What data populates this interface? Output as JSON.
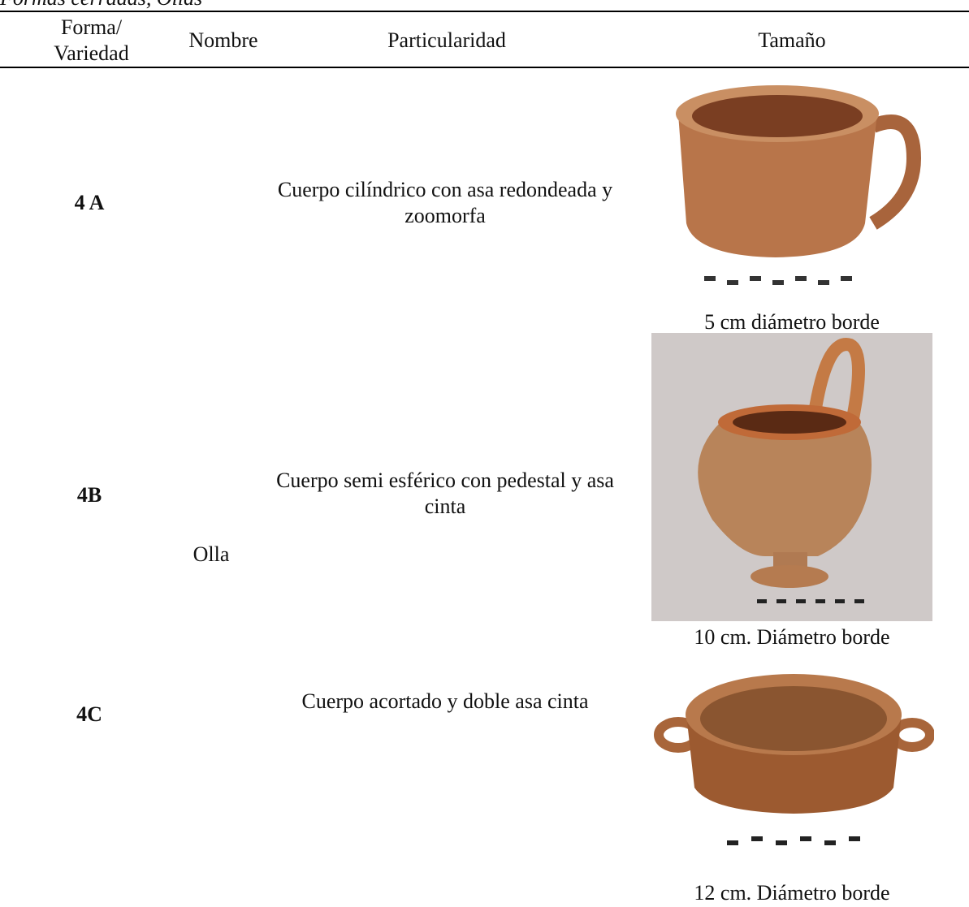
{
  "caption": "Formas cerradas, Ollas",
  "table": {
    "headers": [
      "Forma/ Variedad",
      "Nombre",
      "Particularidad",
      "Tamaño"
    ],
    "nombre": "Olla",
    "rows": [
      {
        "forma": "4 A",
        "particularidad": "Cuerpo cilíndrico con asa redondeada y zoomorfa",
        "tamano": "5 cm diámetro borde"
      },
      {
        "forma": "4B",
        "particularidad": "Cuerpo semi esférico con pedestal y asa cinta",
        "tamano": "10 cm. Diámetro borde"
      },
      {
        "forma": "4C",
        "particularidad": "Cuerpo acortado y doble asa cinta",
        "tamano": "12 cm. Diámetro borde"
      }
    ]
  }
}
